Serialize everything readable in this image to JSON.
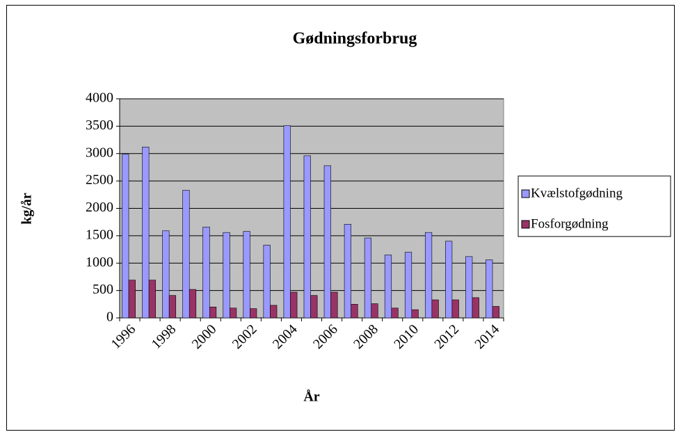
{
  "chart_data": {
    "type": "bar",
    "title": "Gødningsforbrug",
    "x_label": "År",
    "y_label": "kg/år",
    "categories": [
      "1996",
      null,
      "1998",
      null,
      "2000",
      null,
      "2002",
      null,
      "2004",
      null,
      "2006",
      null,
      "2008",
      null,
      "2010",
      null,
      "2012",
      null,
      "2014"
    ],
    "series": [
      {
        "name": "Kvælstofgødning",
        "color": "#9999ff",
        "values": [
          2990,
          3120,
          1590,
          2330,
          1660,
          1560,
          1580,
          1330,
          3510,
          2960,
          2780,
          1710,
          1460,
          1150,
          1200,
          1560,
          1400,
          1120,
          1060
        ]
      },
      {
        "name": "Fosforgødning",
        "color": "#993366",
        "values": [
          690,
          690,
          410,
          520,
          200,
          180,
          170,
          230,
          470,
          410,
          470,
          250,
          260,
          180,
          150,
          330,
          330,
          370,
          210
        ]
      }
    ],
    "ylim": [
      0,
      4000
    ],
    "yticks": [
      0,
      500,
      1000,
      1500,
      2000,
      2500,
      3000,
      3500,
      4000
    ],
    "grid": true,
    "legend": "right",
    "plot_background": "#c0c0c0"
  }
}
